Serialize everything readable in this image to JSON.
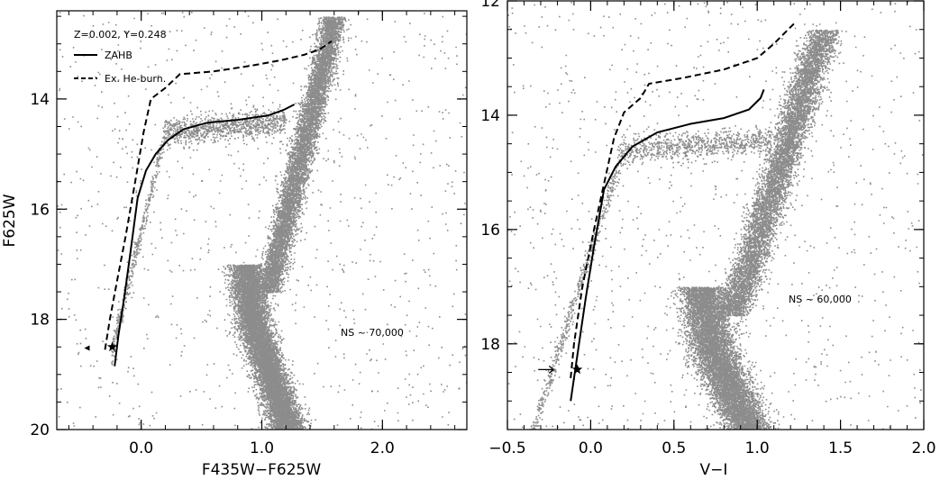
{
  "chart_data": [
    {
      "type": "scatter",
      "title": "",
      "xlabel": "F435W−F625W",
      "ylabel": "F625W",
      "xlim": [
        -0.7,
        2.7
      ],
      "ylim": [
        20,
        12.4
      ],
      "y_inverted": true,
      "grid": false,
      "legend": "top-left",
      "xticks": [
        {
          "value": 0.0,
          "label": "0.0"
        },
        {
          "value": 1.0,
          "label": "1.0"
        },
        {
          "value": 2.0,
          "label": "2.0"
        }
      ],
      "yticks": [
        {
          "value": 14,
          "label": "14"
        },
        {
          "value": 16,
          "label": "16"
        },
        {
          "value": 18,
          "label": "18"
        },
        {
          "value": 20,
          "label": "20"
        }
      ],
      "annotations": {
        "metallicity": "Z=0.002, Y=0.248",
        "ns": "NS ~ 70,000"
      },
      "legend_entries": [
        {
          "name": "ZAHB",
          "style": "solid"
        },
        {
          "name": "Ex. He-burn.",
          "style": "dashed"
        }
      ],
      "series": [
        {
          "name": "ZAHB",
          "style": "solid",
          "points": [
            [
              -0.22,
              18.85
            ],
            [
              -0.19,
              18.3
            ],
            [
              -0.14,
              17.6
            ],
            [
              -0.09,
              16.8
            ],
            [
              -0.03,
              15.8
            ],
            [
              0.04,
              15.3
            ],
            [
              0.12,
              15.0
            ],
            [
              0.22,
              14.75
            ],
            [
              0.35,
              14.55
            ],
            [
              0.55,
              14.43
            ],
            [
              0.8,
              14.38
            ],
            [
              1.05,
              14.3
            ],
            [
              1.18,
              14.2
            ],
            [
              1.27,
              14.1
            ]
          ]
        },
        {
          "name": "Ex. He-burn.",
          "style": "dashed",
          "points": [
            [
              -0.3,
              18.55
            ],
            [
              -0.26,
              18.0
            ],
            [
              -0.2,
              17.3
            ],
            [
              -0.13,
              16.5
            ],
            [
              -0.05,
              15.5
            ],
            [
              0.02,
              14.6
            ],
            [
              0.08,
              14.0
            ],
            [
              0.2,
              13.8
            ],
            [
              0.32,
              13.55
            ],
            [
              0.6,
              13.5
            ],
            [
              0.9,
              13.4
            ],
            [
              1.15,
              13.3
            ],
            [
              1.35,
              13.2
            ],
            [
              1.48,
              13.1
            ],
            [
              1.58,
              12.95
            ]
          ]
        }
      ],
      "markers": {
        "star": [
          -0.24,
          18.5
        ],
        "arrow": [
          -0.45,
          18.52
        ]
      },
      "colors": {
        "points": "#8c8c8c",
        "lines": "#000000"
      }
    },
    {
      "type": "scatter",
      "title": "",
      "xlabel": "V−I",
      "ylabel": "",
      "xlim": [
        -0.5,
        2.0
      ],
      "ylim": [
        19.5,
        12
      ],
      "y_inverted": true,
      "grid": false,
      "xticks": [
        {
          "value": -0.5,
          "label": "−0.5"
        },
        {
          "value": 0.0,
          "label": "0.0"
        },
        {
          "value": 0.5,
          "label": "0.5"
        },
        {
          "value": 1.0,
          "label": "1.0"
        },
        {
          "value": 1.5,
          "label": "1.5"
        },
        {
          "value": 2.0,
          "label": "2.0"
        }
      ],
      "yticks": [
        {
          "value": 12,
          "label": "12"
        },
        {
          "value": 14,
          "label": "14"
        },
        {
          "value": 16,
          "label": "16"
        },
        {
          "value": 18,
          "label": "18"
        }
      ],
      "annotations": {
        "ns": "NS ~ 60,000"
      },
      "series": [
        {
          "name": "ZAHB",
          "style": "solid",
          "points": [
            [
              -0.12,
              19.0
            ],
            [
              -0.08,
              18.2
            ],
            [
              -0.03,
              17.2
            ],
            [
              0.02,
              16.3
            ],
            [
              0.08,
              15.3
            ],
            [
              0.15,
              14.9
            ],
            [
              0.25,
              14.55
            ],
            [
              0.4,
              14.3
            ],
            [
              0.6,
              14.15
            ],
            [
              0.8,
              14.05
            ],
            [
              0.95,
              13.9
            ],
            [
              1.02,
              13.7
            ],
            [
              1.04,
              13.55
            ]
          ]
        },
        {
          "name": "Ex. He-burn.",
          "style": "dashed",
          "points": [
            [
              -0.12,
              18.6
            ],
            [
              -0.1,
              18.0
            ],
            [
              -0.05,
              17.0
            ],
            [
              0.02,
              16.0
            ],
            [
              0.08,
              15.2
            ],
            [
              0.14,
              14.4
            ],
            [
              0.2,
              13.95
            ],
            [
              0.3,
              13.7
            ],
            [
              0.35,
              13.45
            ],
            [
              0.55,
              13.35
            ],
            [
              0.8,
              13.2
            ],
            [
              1.0,
              13.0
            ],
            [
              1.1,
              12.75
            ],
            [
              1.22,
              12.4
            ]
          ]
        }
      ],
      "markers": {
        "star": [
          -0.08,
          18.45
        ],
        "arrow": [
          -0.25,
          18.45
        ]
      },
      "colors": {
        "points": "#8c8c8c",
        "lines": "#000000"
      }
    }
  ]
}
